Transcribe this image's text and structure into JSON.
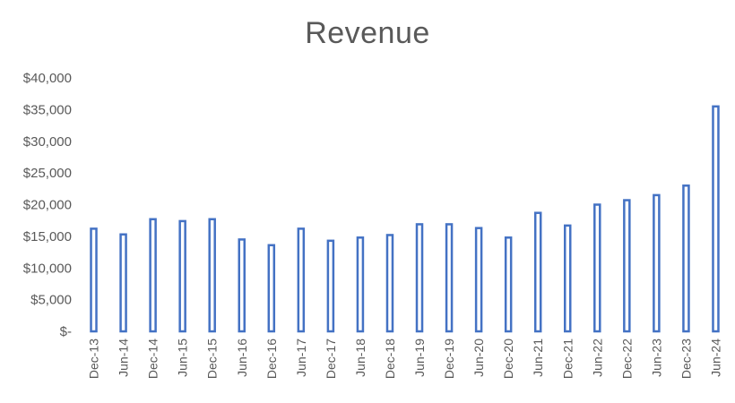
{
  "chart_data": {
    "type": "bar",
    "title": "Revenue",
    "xlabel": "",
    "ylabel": "",
    "ylim": [
      0,
      40000
    ],
    "yticks": [
      0,
      5000,
      10000,
      15000,
      20000,
      25000,
      30000,
      35000,
      40000
    ],
    "ytick_labels": [
      "$-",
      "$5,000",
      "$10,000",
      "$15,000",
      "$20,000",
      "$25,000",
      "$30,000",
      "$35,000",
      "$40,000"
    ],
    "grid": false,
    "legend": "none",
    "bar_style": "outline",
    "bar_color": "#4472C4",
    "categories": [
      "Dec-13",
      "Jun-14",
      "Dec-14",
      "Jun-15",
      "Dec-15",
      "Jun-16",
      "Dec-16",
      "Jun-17",
      "Dec-17",
      "Jun-18",
      "Dec-18",
      "Jun-19",
      "Dec-19",
      "Jun-20",
      "Dec-20",
      "Jun-21",
      "Dec-21",
      "Jun-22",
      "Dec-22",
      "Jun-23",
      "Dec-23",
      "Jun-24"
    ],
    "values": [
      16200,
      15300,
      17700,
      17400,
      17700,
      14500,
      13600,
      16200,
      14300,
      14800,
      15200,
      16900,
      16900,
      16300,
      14800,
      18700,
      16700,
      20000,
      20700,
      21500,
      23000,
      35500
    ]
  }
}
